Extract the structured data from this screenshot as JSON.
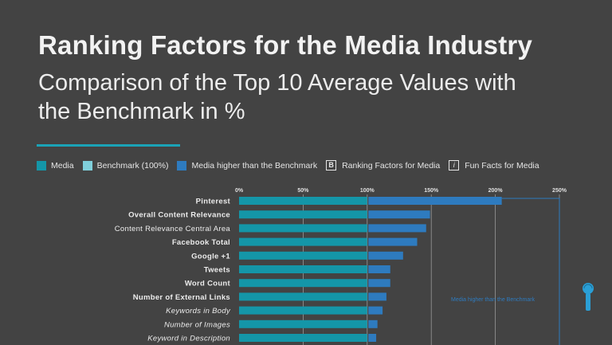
{
  "header": {
    "title": "Ranking Factors for the Media Industry",
    "subtitle": "Comparison of the Top 10 Average Values with the Benchmark in %"
  },
  "legend": {
    "items": [
      {
        "label": "Media",
        "color": "#1496a8"
      },
      {
        "label": "Benchmark (100%)",
        "color": "#7fcfdb"
      },
      {
        "label": "Media higher than the Benchmark",
        "color": "#2e7bbf"
      }
    ],
    "ranking_icon": "B",
    "ranking_label": "Ranking Factors for Media",
    "funfact_icon": "i",
    "funfact_label": "Fun Facts for Media"
  },
  "colors": {
    "media": "#1496a8",
    "benchmark": "#7fcfdb",
    "higher": "#2e7bbf",
    "gridline": "#9a9a9a"
  },
  "chart_data": {
    "type": "bar",
    "orientation": "horizontal",
    "x_ticks": [
      "0%",
      "50%",
      "100%",
      "150%",
      "200%",
      "250%"
    ],
    "xlim": [
      0,
      250
    ],
    "annotation": "Media higher than the Benchmark",
    "categories": [
      {
        "label": "Pinterest",
        "style": "bold",
        "value": 205
      },
      {
        "label": "Overall Content Relevance",
        "style": "bold",
        "value": 149
      },
      {
        "label": "Content Relevance Central Area",
        "style": "normal",
        "value": 146
      },
      {
        "label": "Facebook Total",
        "style": "bold",
        "value": 139
      },
      {
        "label": "Google +1",
        "style": "bold",
        "value": 128
      },
      {
        "label": "Tweets",
        "style": "bold",
        "value": 118
      },
      {
        "label": "Word Count",
        "style": "bold",
        "value": 118
      },
      {
        "label": "Number of External Links",
        "style": "bold",
        "value": 115
      },
      {
        "label": "Keywords in Body",
        "style": "italic",
        "value": 112
      },
      {
        "label": "Number of Images",
        "style": "italic",
        "value": 108
      },
      {
        "label": "Keyword in Description",
        "style": "italic",
        "value": 107
      }
    ],
    "benchmark": 100
  }
}
